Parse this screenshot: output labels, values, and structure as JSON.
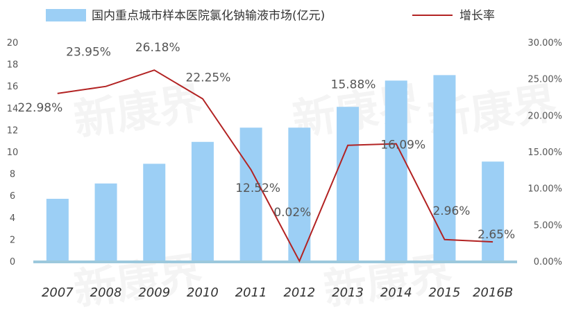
{
  "chart_data": {
    "type": "bar",
    "categories": [
      "2007",
      "2008",
      "2009",
      "2010",
      "2011",
      "2012",
      "2013",
      "2014",
      "2015",
      "2016B"
    ],
    "series": [
      {
        "name": "国内重点城市样本医院氯化钠输液市场(亿元)",
        "type": "bar",
        "axis": "left",
        "values": [
          5.7,
          7.1,
          8.9,
          10.9,
          12.2,
          12.2,
          14.1,
          16.5,
          17.0,
          9.1
        ]
      },
      {
        "name": "增长率",
        "type": "line",
        "axis": "right",
        "values": [
          22.98,
          23.95,
          26.18,
          22.25,
          12.52,
          0.02,
          15.88,
          16.09,
          2.96,
          2.65
        ],
        "labels": [
          "22.98%",
          "23.95%",
          "26.18%",
          "22.25%",
          "12.52%",
          "0.02%",
          "15.88%",
          "16.09%",
          "2.96%",
          "2.65%"
        ]
      }
    ],
    "y_left": {
      "range": [
        0,
        20
      ],
      "ticks": [
        "0",
        "2",
        "4",
        "6",
        "8",
        "10",
        "12",
        "14",
        "16",
        "18",
        "20"
      ]
    },
    "y_right": {
      "range": [
        0,
        30
      ],
      "ticks": [
        "0.00%",
        "5.00%",
        "10.00%",
        "15.00%",
        "20.00%",
        "25.00%",
        "30.00%"
      ]
    },
    "legend_position": "top",
    "grid": false,
    "colors": {
      "bar": "#9ccff5",
      "line": "#b22222",
      "baseline": "#9cc8dc"
    },
    "watermark": "新康界"
  }
}
